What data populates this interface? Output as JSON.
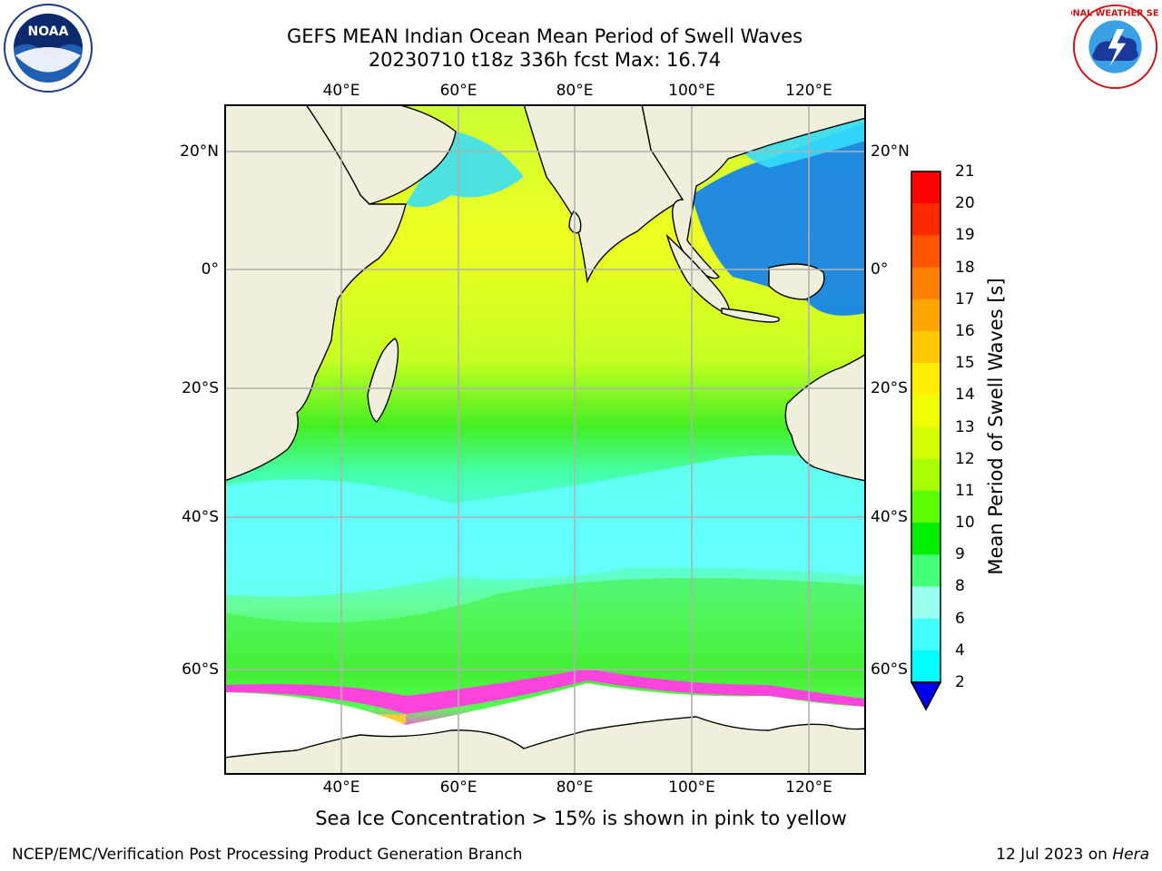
{
  "title": {
    "line1": "GEFS MEAN Indian Ocean Mean Period of Swell Waves",
    "line2": "20230710 t18z 336h fcst   Max: 16.74"
  },
  "logos": {
    "left": {
      "icon": "noaa-logo-icon",
      "text": "NOAA"
    },
    "right": {
      "icon": "nws-logo-icon",
      "text": "NATIONAL WEATHER SERVICE"
    }
  },
  "map": {
    "lon_labels": [
      "40°E",
      "60°E",
      "80°E",
      "100°E",
      "120°E"
    ],
    "lat_labels": [
      "20°N",
      "0°",
      "20°S",
      "40°S",
      "60°S"
    ]
  },
  "colorbar": {
    "label": "Mean Period of Swell Waves [s]",
    "ticks": [
      "21",
      "20",
      "19",
      "18",
      "17",
      "16",
      "15",
      "14",
      "13",
      "12",
      "11",
      "10",
      "9",
      "8",
      "6",
      "4",
      "2"
    ],
    "colors": [
      "#ff0000",
      "#ff2a00",
      "#ff5500",
      "#ff8000",
      "#ffa500",
      "#ffc800",
      "#ffee00",
      "#f0ff00",
      "#d4ff00",
      "#a8ff00",
      "#5cff00",
      "#00ee00",
      "#44ff77",
      "#99ffee",
      "#44ffff",
      "#00ffff",
      "#00ccff",
      "#0066ff"
    ],
    "extend_color": "#0000ee"
  },
  "footnote": "Sea Ice Concentration > 15% is shown in pink to yellow",
  "footer": {
    "left": "NCEP/EMC/Verification Post Processing Product Generation Branch",
    "right_prefix": "12 Jul 2023 on ",
    "right_italic": "Hera"
  }
}
